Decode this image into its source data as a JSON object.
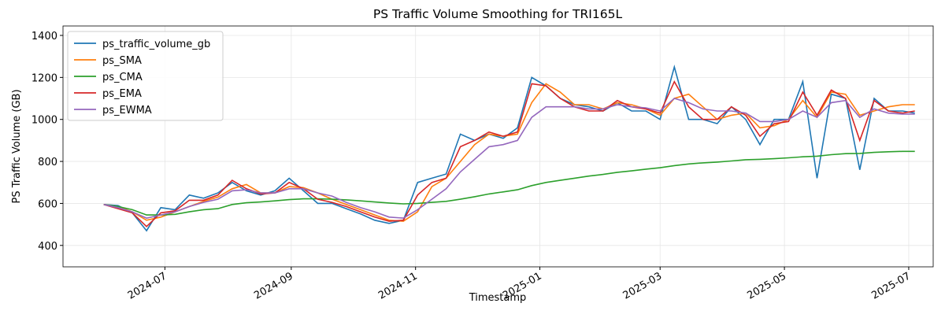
{
  "chart_data": {
    "type": "line",
    "title": "PS Traffic Volume Smoothing for TRI165L",
    "x_label": "Timestamp",
    "y_label": "PS Traffic Volume (GB)",
    "x": [
      "2024-06-01",
      "2024-06-08",
      "2024-06-15",
      "2024-06-22",
      "2024-06-29",
      "2024-07-06",
      "2024-07-13",
      "2024-07-20",
      "2024-07-27",
      "2024-08-03",
      "2024-08-10",
      "2024-08-17",
      "2024-08-24",
      "2024-08-31",
      "2024-09-07",
      "2024-09-14",
      "2024-09-21",
      "2024-09-28",
      "2024-10-05",
      "2024-10-12",
      "2024-10-19",
      "2024-10-26",
      "2024-11-02",
      "2024-11-09",
      "2024-11-16",
      "2024-11-23",
      "2024-11-30",
      "2024-12-07",
      "2024-12-14",
      "2024-12-21",
      "2024-12-28",
      "2025-01-04",
      "2025-01-11",
      "2025-01-18",
      "2025-01-25",
      "2025-02-01",
      "2025-02-08",
      "2025-02-15",
      "2025-02-22",
      "2025-03-01",
      "2025-03-08",
      "2025-03-15",
      "2025-03-22",
      "2025-03-29",
      "2025-04-05",
      "2025-04-12",
      "2025-04-19",
      "2025-04-26",
      "2025-05-03",
      "2025-05-10",
      "2025-05-17",
      "2025-05-24",
      "2025-05-31",
      "2025-06-07",
      "2025-06-14",
      "2025-06-21",
      "2025-06-28",
      "2025-07-04"
    ],
    "series": [
      {
        "name": "ps_traffic_volume_gb",
        "color": "#1f77b4",
        "values": [
          595,
          590,
          555,
          470,
          580,
          570,
          640,
          625,
          650,
          700,
          660,
          640,
          660,
          720,
          660,
          600,
          600,
          575,
          550,
          520,
          505,
          520,
          700,
          720,
          740,
          930,
          900,
          930,
          910,
          960,
          1200,
          1160,
          1100,
          1070,
          1060,
          1040,
          1080,
          1040,
          1040,
          1000,
          1250,
          1000,
          1000,
          980,
          1060,
          1000,
          880,
          1000,
          1000,
          1180,
          720,
          1120,
          1100,
          760,
          1100,
          1040,
          1040,
          1030
        ]
      },
      {
        "name": "ps_SMA",
        "color": "#ff7f0e",
        "values": [
          595,
          585,
          560,
          520,
          535,
          560,
          585,
          610,
          630,
          670,
          690,
          650,
          650,
          680,
          675,
          650,
          620,
          595,
          570,
          545,
          520,
          515,
          560,
          680,
          720,
          800,
          880,
          930,
          920,
          930,
          1080,
          1170,
          1130,
          1070,
          1070,
          1050,
          1080,
          1070,
          1050,
          1020,
          1100,
          1120,
          1060,
          1000,
          1020,
          1030,
          960,
          970,
          1000,
          1090,
          1010,
          1130,
          1120,
          1020,
          1040,
          1060,
          1070,
          1070
        ]
      },
      {
        "name": "ps_CMA",
        "color": "#2ca02c",
        "values": [
          595,
          585,
          570,
          545,
          545,
          548,
          560,
          570,
          575,
          595,
          603,
          607,
          612,
          618,
          622,
          622,
          620,
          617,
          612,
          607,
          602,
          598,
          600,
          605,
          610,
          620,
          632,
          645,
          655,
          665,
          685,
          700,
          710,
          720,
          730,
          738,
          748,
          755,
          763,
          770,
          780,
          788,
          793,
          797,
          802,
          808,
          810,
          813,
          817,
          822,
          825,
          832,
          837,
          838,
          843,
          846,
          848,
          848
        ]
      },
      {
        "name": "ps_EMA",
        "color": "#d62728",
        "values": [
          595,
          575,
          555,
          490,
          555,
          565,
          615,
          615,
          640,
          710,
          670,
          645,
          650,
          700,
          670,
          620,
          605,
          585,
          560,
          535,
          515,
          520,
          640,
          700,
          720,
          870,
          900,
          940,
          920,
          940,
          1170,
          1160,
          1100,
          1060,
          1040,
          1040,
          1090,
          1060,
          1050,
          1030,
          1180,
          1060,
          1000,
          1000,
          1060,
          1020,
          920,
          980,
          990,
          1130,
          1020,
          1140,
          1100,
          900,
          1090,
          1040,
          1030,
          1040
        ]
      },
      {
        "name": "ps_EWMA",
        "color": "#9467bd",
        "values": [
          595,
          580,
          560,
          530,
          545,
          560,
          585,
          605,
          620,
          660,
          665,
          650,
          650,
          670,
          670,
          650,
          635,
          605,
          580,
          560,
          535,
          530,
          570,
          620,
          670,
          750,
          810,
          870,
          880,
          900,
          1010,
          1060,
          1060,
          1060,
          1050,
          1050,
          1070,
          1060,
          1055,
          1040,
          1100,
          1080,
          1050,
          1040,
          1040,
          1030,
          990,
          990,
          1000,
          1040,
          1010,
          1080,
          1090,
          1010,
          1050,
          1030,
          1025,
          1025
        ]
      }
    ],
    "xlim": [
      "2024-05-12",
      "2025-07-13"
    ],
    "xticks": [
      "2024-07",
      "2024-09",
      "2024-11",
      "2025-01",
      "2025-03",
      "2025-05",
      "2025-07"
    ],
    "ylim": [
      298,
      1445
    ],
    "yticks": [
      400,
      600,
      800,
      1000,
      1200,
      1400
    ],
    "grid": true,
    "legend": "upper left"
  }
}
